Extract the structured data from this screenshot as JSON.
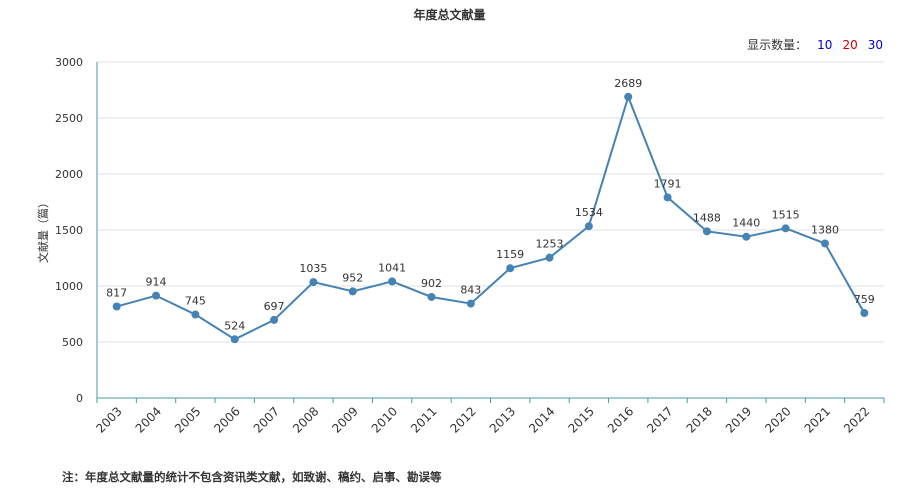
{
  "chart_data": {
    "type": "line",
    "title": "年度总文献量",
    "ylabel": "文献量（篇）",
    "xlabel": "",
    "ylim": [
      0,
      3000
    ],
    "yticks": [
      0,
      500,
      1000,
      1500,
      2000,
      2500,
      3000
    ],
    "grid": true,
    "color": "#4682b4",
    "categories": [
      "2003",
      "2004",
      "2005",
      "2006",
      "2007",
      "2008",
      "2009",
      "2010",
      "2011",
      "2012",
      "2013",
      "2014",
      "2015",
      "2016",
      "2017",
      "2018",
      "2019",
      "2020",
      "2021",
      "2022"
    ],
    "values": [
      817,
      914,
      745,
      524,
      697,
      1035,
      952,
      1041,
      902,
      843,
      1159,
      1253,
      1534,
      2689,
      1791,
      1488,
      1440,
      1515,
      1380,
      759
    ]
  },
  "display_count": {
    "label": "显示数量：",
    "options": [
      {
        "text": "10",
        "color": "#0000cc"
      },
      {
        "text": "20",
        "color": "#cc0000"
      },
      {
        "text": "30",
        "color": "#0000cc"
      }
    ]
  },
  "note": "注：年度总文献量的统计不包含资讯类文献，如致谢、稿约、启事、勘误等"
}
